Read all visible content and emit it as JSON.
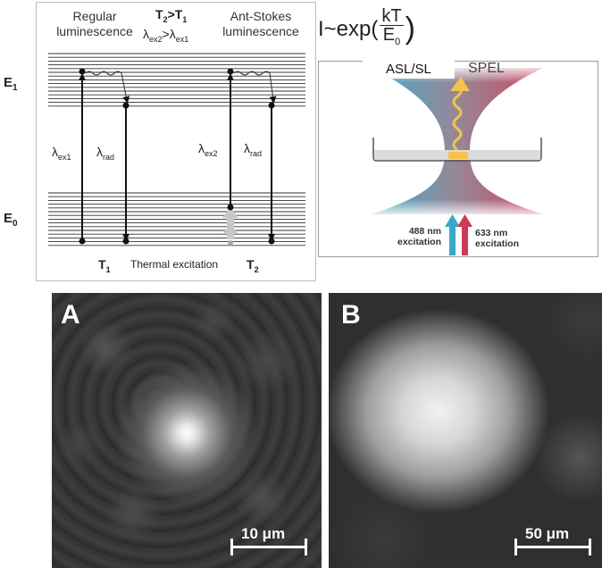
{
  "energy_diagram": {
    "level_upper": "E",
    "level_upper_sub": "1",
    "level_lower": "E",
    "level_lower_sub": "0",
    "left_title_line1": "Regular",
    "left_title_line2": "luminescence",
    "right_title_line1": "Ant-Stokes",
    "right_title_line2": "luminescence",
    "condition_temp": "T",
    "condition_temp_sub2": "2",
    "condition_op": ">T",
    "condition_temp_sub1": "1",
    "condition_lambda": "λ",
    "condition_lambda_sub_a": "ex2",
    "condition_lambda_op": ">λ",
    "condition_lambda_sub_b": "ex1",
    "lambda_ex1": "λ",
    "lambda_ex1_sub": "ex1",
    "lambda_rad_left": "λ",
    "lambda_rad_left_sub": "rad",
    "lambda_ex2": "λ",
    "lambda_ex2_sub": "ex2",
    "lambda_rad_right": "λ",
    "lambda_rad_right_sub": "rad",
    "temp_left": "T",
    "temp_left_sub": "1",
    "temp_right": "T",
    "temp_right_sub": "2",
    "thermal_label": "Thermal excitation"
  },
  "formula": {
    "prefix": "I~exp(",
    "numerator": "kT",
    "denominator": "E",
    "denominator_sub": "0",
    "suffix": ")"
  },
  "spel_diagram": {
    "label_left": "ASL/SL",
    "label_right": "SPEL",
    "laser_blue_line1": "488 nm",
    "laser_blue_line2": "excitation",
    "laser_red_line1": "633 nm",
    "laser_red_line2": "excitation",
    "color_blue": "#3aa8c8",
    "color_red": "#cc3b57",
    "color_arrow": "#f3c34a"
  },
  "panels": [
    {
      "letter": "A",
      "scale_label": "10 μm"
    },
    {
      "letter": "B",
      "scale_label": "50 μm"
    }
  ]
}
